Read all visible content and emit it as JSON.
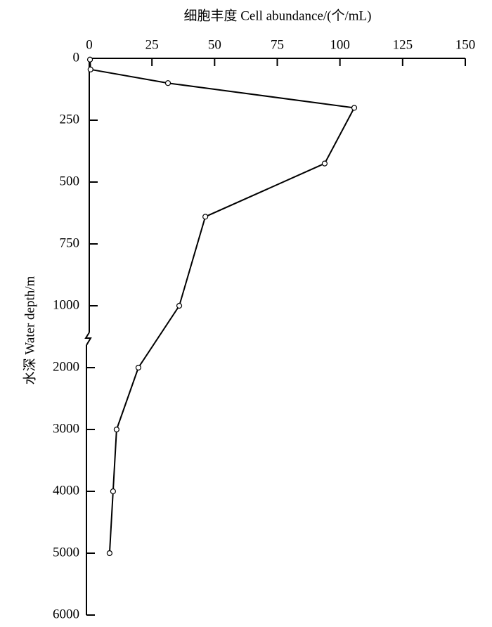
{
  "chart_data": {
    "type": "line",
    "x_label": "细胞丰度 Cell abundance/(个/mL)",
    "y_label": "水深 Water depth/m",
    "x": [
      0.3,
      0.5,
      31.4,
      105.7,
      93.9,
      46.3,
      35.9,
      19.6,
      10.9,
      9.5,
      8.1
    ],
    "series": [
      {
        "color": "#000000",
        "values": [
          5,
          45,
          100,
          200,
          425,
          640,
          1000,
          2000,
          3000,
          4000,
          5000
        ]
      }
    ],
    "xlim": [
      0,
      150
    ],
    "xticks": [
      0,
      25,
      50,
      75,
      100,
      125,
      150
    ],
    "ylim": [
      0,
      6000
    ],
    "yticks": [
      0,
      250,
      500,
      750,
      1000,
      2000,
      3000,
      4000,
      5000,
      6000
    ],
    "y_inverted": true,
    "axis_break": [
      1000,
      2000
    ],
    "grid": false
  }
}
